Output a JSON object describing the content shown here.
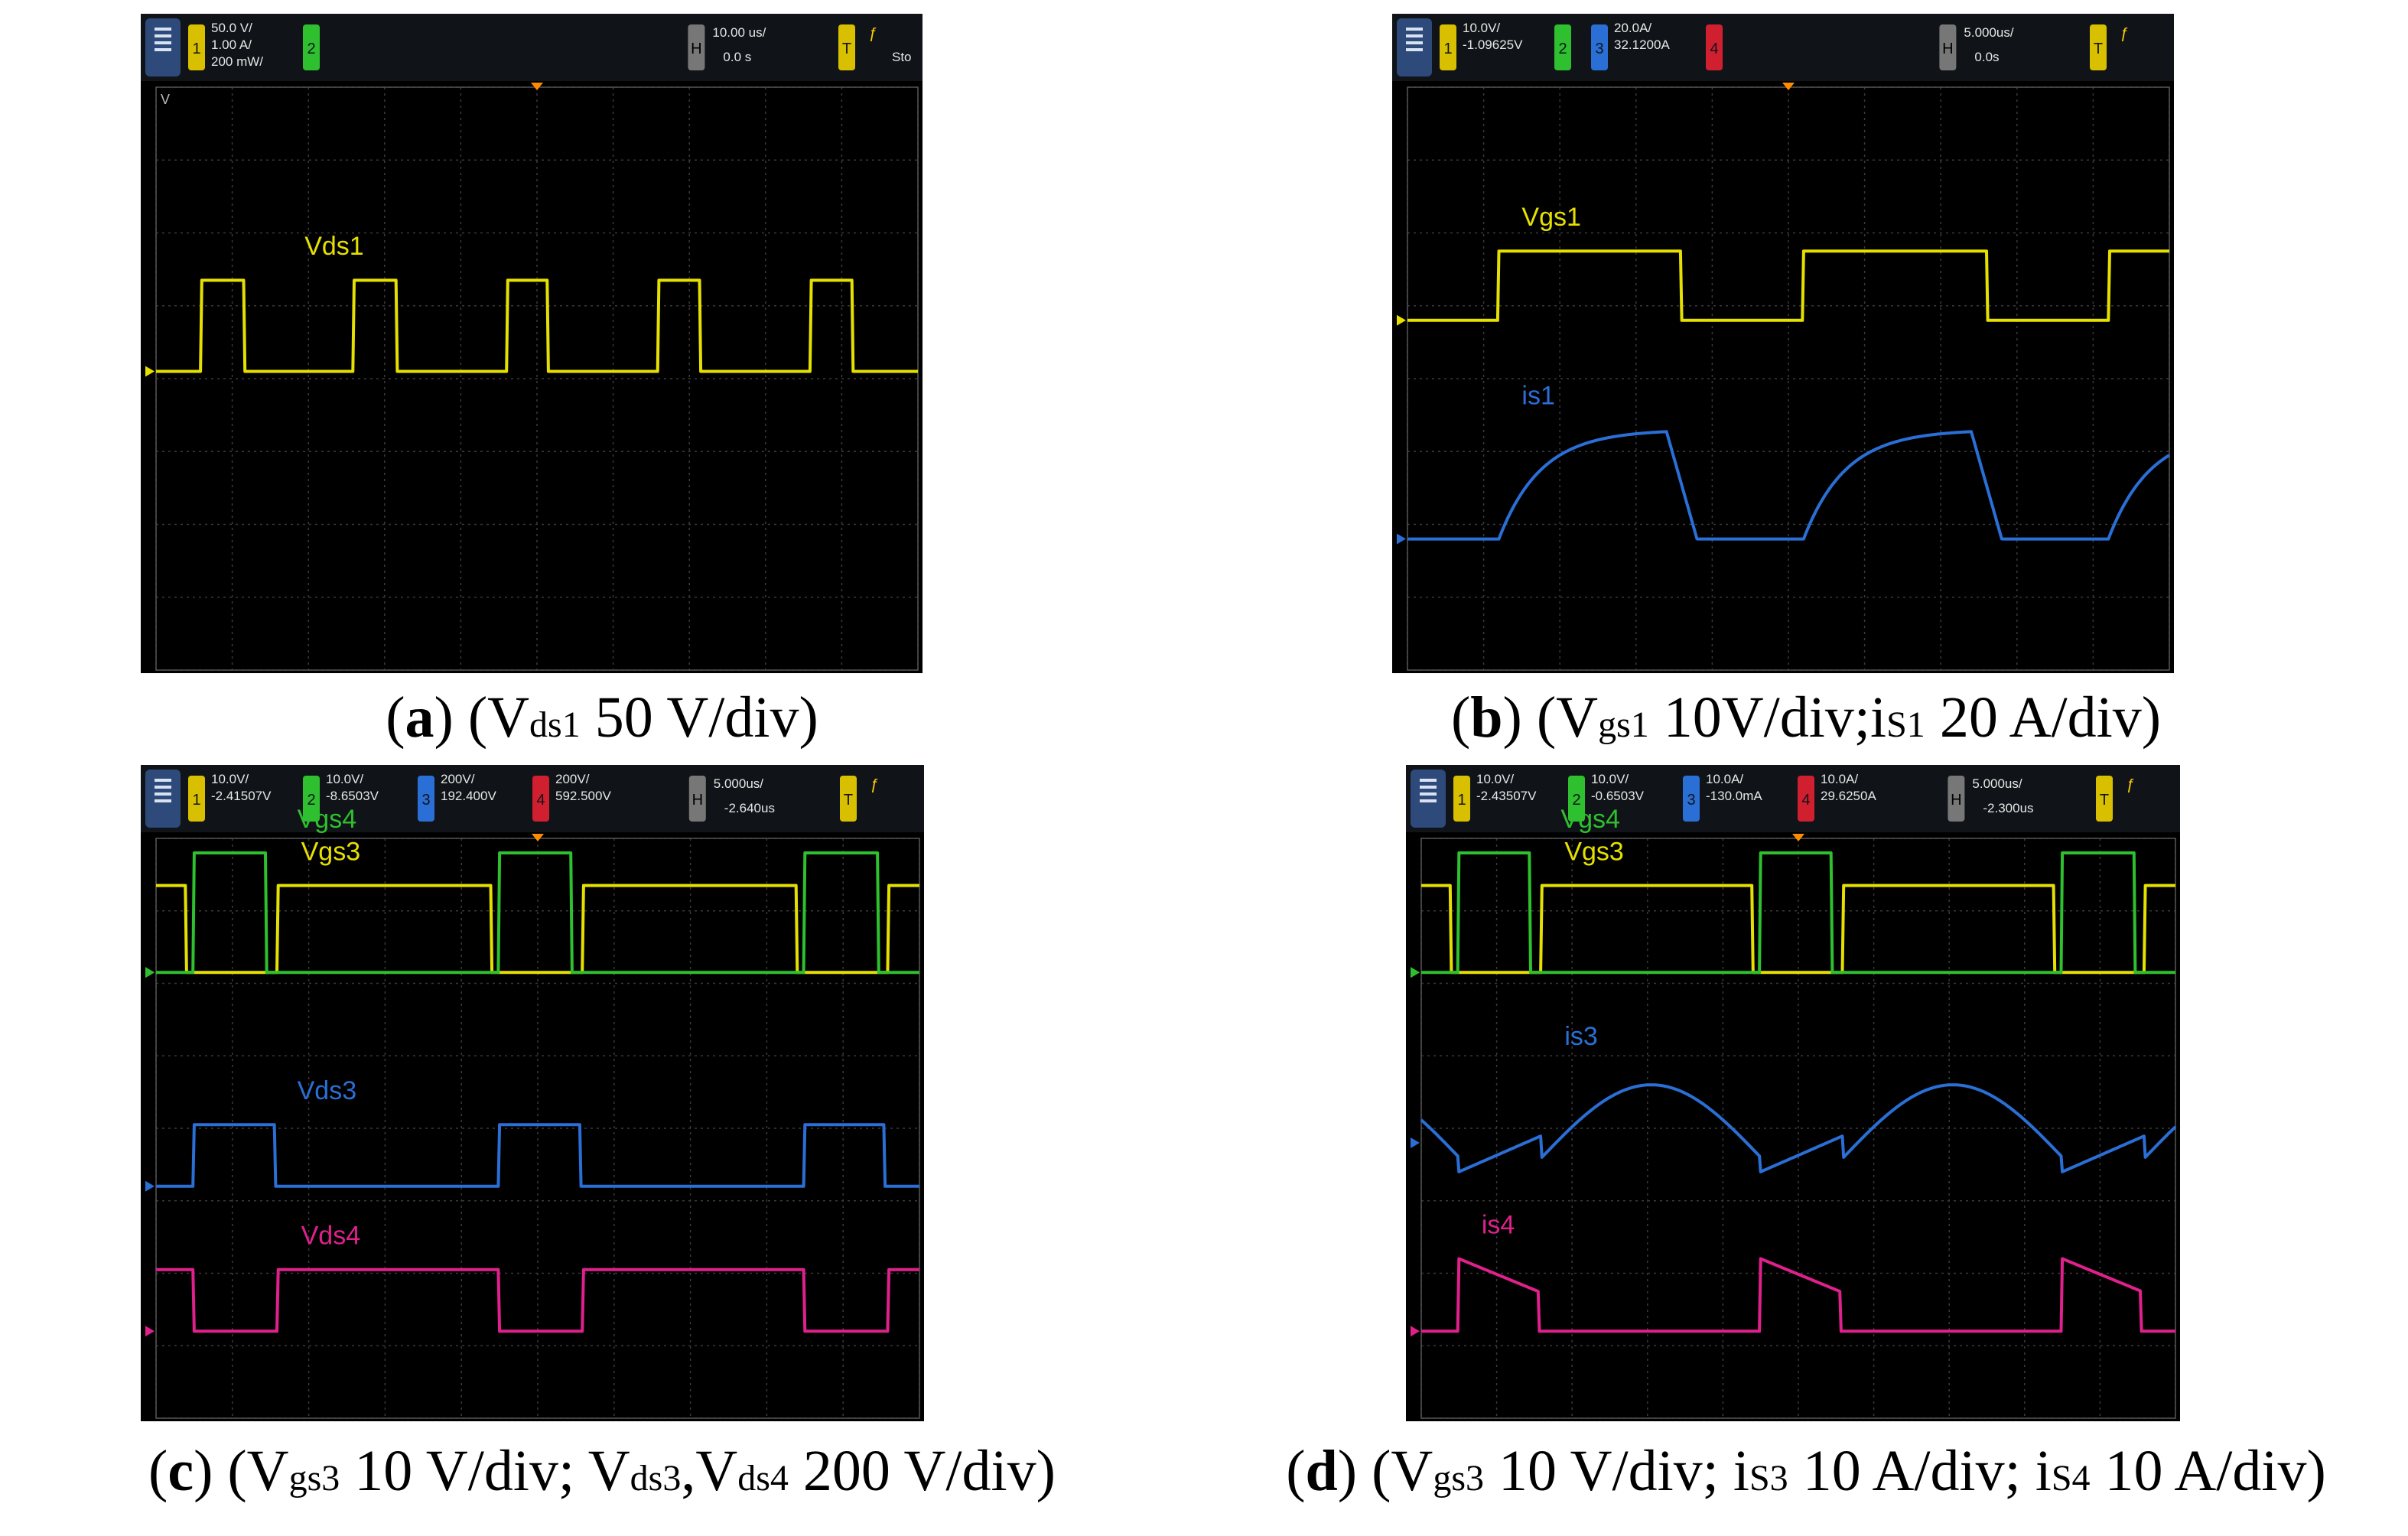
{
  "panels": [
    {
      "id": "a",
      "caption": {
        "letter": "a",
        "pre": " (V",
        "sub1": "ds1",
        "post1": " 50 V/div)",
        "sub2": "",
        "post2": "",
        "sub3": "",
        "post3": ""
      },
      "header": [
        {
          "ch": "1",
          "color": "#d8c000",
          "text1": "50.0 V/",
          "text2": "1.00 A/",
          "text3": "200 mW/"
        },
        {
          "ch": "2",
          "color": "#2ec02e",
          "text1": "",
          "text2": "",
          "text3": ""
        }
      ],
      "timebase": {
        "text1": "10.00 us/",
        "text2": "0.0 s"
      },
      "trigger_text": "Sto",
      "corner_label": "V"
    },
    {
      "id": "b",
      "caption": {
        "letter": "b",
        "pre": " (V",
        "sub1": "gs1",
        "post1": " 10V/div;i",
        "sub2": "S1",
        "post2": " 20 A/div)",
        "sub3": "",
        "post3": ""
      },
      "header": [
        {
          "ch": "1",
          "color": "#d8c000",
          "text1": "10.0V/",
          "text2": "-1.09625V",
          "text3": ""
        },
        {
          "ch": "2",
          "color": "#2ec02e",
          "text1": "",
          "text2": "",
          "text3": ""
        },
        {
          "ch": "3",
          "color": "#2a6fd6",
          "text1": "20.0A/",
          "text2": "32.1200A",
          "text3": ""
        },
        {
          "ch": "4",
          "color": "#d0202f",
          "text1": "",
          "text2": "",
          "text3": ""
        }
      ],
      "timebase": {
        "text1": "5.000us/",
        "text2": "0.0s"
      },
      "trigger_text": "",
      "corner_label": ""
    },
    {
      "id": "c",
      "caption": {
        "letter": "c",
        "pre": " (V",
        "sub1": "gs3",
        "post1": " 10 V/div; V",
        "sub2": "ds3",
        "post2": ",V",
        "sub3": "ds4",
        "post3": " 200 V/div)"
      },
      "header": [
        {
          "ch": "1",
          "color": "#d8c000",
          "text1": "10.0V/",
          "text2": "-2.41507V",
          "text3": ""
        },
        {
          "ch": "2",
          "color": "#2ec02e",
          "text1": "10.0V/",
          "text2": "-8.6503V",
          "text3": ""
        },
        {
          "ch": "3",
          "color": "#2a6fd6",
          "text1": "200V/",
          "text2": "192.400V",
          "text3": ""
        },
        {
          "ch": "4",
          "color": "#d0202f",
          "text1": "200V/",
          "text2": "592.500V",
          "text3": ""
        }
      ],
      "timebase": {
        "text1": "5.000us/",
        "text2": "-2.640us"
      },
      "trigger_text": "",
      "corner_label": ""
    },
    {
      "id": "d",
      "caption": {
        "letter": "d",
        "pre": " (V",
        "sub1": "gs3",
        "post1": " 10 V/div; i",
        "sub2": "S3",
        "post2": " 10 A/div; i",
        "sub3": "S4",
        "post3": " 10 A/div)"
      },
      "header": [
        {
          "ch": "1",
          "color": "#d8c000",
          "text1": "10.0V/",
          "text2": "-2.43507V",
          "text3": ""
        },
        {
          "ch": "2",
          "color": "#2ec02e",
          "text1": "10.0V/",
          "text2": "-0.6503V",
          "text3": ""
        },
        {
          "ch": "3",
          "color": "#2a6fd6",
          "text1": "10.0A/",
          "text2": "-130.0mA",
          "text3": ""
        },
        {
          "ch": "4",
          "color": "#d0202f",
          "text1": "10.0A/",
          "text2": "29.6250A",
          "text3": ""
        }
      ],
      "timebase": {
        "text1": "5.000us/",
        "text2": "-2.300us"
      },
      "trigger_text": "",
      "corner_label": ""
    }
  ],
  "chart_data": [
    {
      "type": "line",
      "panel": "a",
      "grid": true,
      "grid_divisions": {
        "x": 10,
        "y": 8
      },
      "x_unit": "div",
      "y_unit": "div",
      "series": [
        {
          "name": "Vds1",
          "color": "#e6e000",
          "waveform": "square",
          "baseline_div": 3.9,
          "amplitude_div": 1.25,
          "period_div": 2.0,
          "high_start_div": 0.6,
          "high_width_div": 0.55,
          "pattern": "pulse"
        }
      ]
    },
    {
      "type": "line",
      "panel": "b",
      "grid": true,
      "grid_divisions": {
        "x": 10,
        "y": 8
      },
      "x_unit": "div",
      "y_unit": "div",
      "series": [
        {
          "name": "Vgs1",
          "color": "#e6e000",
          "waveform": "square",
          "baseline_div": 3.2,
          "amplitude_div": 0.95,
          "period_div": 4.0,
          "high_start_div": 1.2,
          "high_width_div": 2.4,
          "pattern": "pulse"
        },
        {
          "name": "is1",
          "color": "#2a6fd6",
          "waveform": "rise-fall",
          "baseline_div": 6.2,
          "amplitude_div": 1.5,
          "period_div": 4.0,
          "high_start_div": 1.2,
          "high_width_div": 2.2,
          "pattern": "exp"
        }
      ]
    },
    {
      "type": "line",
      "panel": "c",
      "grid": true,
      "grid_divisions": {
        "x": 10,
        "y": 8
      },
      "x_unit": "div",
      "y_unit": "div",
      "series": [
        {
          "name": "Vgs3",
          "color": "#e6e000",
          "waveform": "square",
          "baseline_div": 1.85,
          "amplitude_div": 1.2,
          "period_div": 4.0,
          "high_start_div": 1.6,
          "high_width_div": 2.8,
          "pattern": "pulse"
        },
        {
          "name": "Vgs4",
          "color": "#2ec02e",
          "waveform": "square",
          "baseline_div": 1.85,
          "amplitude_div": 1.65,
          "period_div": 4.0,
          "high_start_div": 0.5,
          "high_width_div": 0.95,
          "pattern": "pulse"
        },
        {
          "name": "Vds3",
          "color": "#2a6fd6",
          "waveform": "square",
          "baseline_div": 4.8,
          "amplitude_div": 0.85,
          "period_div": 4.0,
          "high_start_div": 0.5,
          "high_width_div": 1.05,
          "pattern": "pulse"
        },
        {
          "name": "Vds4",
          "color": "#e0208c",
          "waveform": "square",
          "baseline_div": 6.8,
          "amplitude_div": 0.85,
          "period_div": 4.0,
          "high_start_div": 1.6,
          "high_width_div": 2.9,
          "pattern": "pulse"
        }
      ]
    },
    {
      "type": "line",
      "panel": "d",
      "grid": true,
      "grid_divisions": {
        "x": 10,
        "y": 8
      },
      "x_unit": "div",
      "y_unit": "div",
      "series": [
        {
          "name": "Vgs3",
          "color": "#e6e000",
          "waveform": "square",
          "baseline_div": 1.85,
          "amplitude_div": 1.2,
          "period_div": 4.0,
          "high_start_div": 1.6,
          "high_width_div": 2.8,
          "pattern": "pulse"
        },
        {
          "name": "Vgs4",
          "color": "#2ec02e",
          "waveform": "square",
          "baseline_div": 1.85,
          "amplitude_div": 1.65,
          "period_div": 4.0,
          "high_start_div": 0.5,
          "high_width_div": 0.95,
          "pattern": "pulse"
        },
        {
          "name": "is3",
          "color": "#2a6fd6",
          "waveform": "sine-arch",
          "baseline_div": 4.2,
          "amplitude_div": 1.0,
          "period_div": 4.0,
          "high_start_div": 1.6,
          "high_width_div": 2.9,
          "pattern": "arch"
        },
        {
          "name": "is4",
          "color": "#e0208c",
          "waveform": "decay-pulse",
          "baseline_div": 6.8,
          "amplitude_div": 1.0,
          "period_div": 4.0,
          "high_start_div": 0.5,
          "high_width_div": 1.05,
          "pattern": "decay"
        }
      ]
    }
  ]
}
